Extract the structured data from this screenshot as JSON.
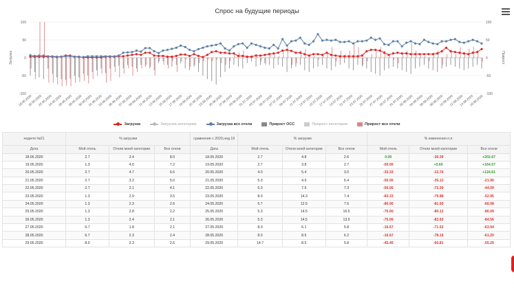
{
  "chart": {
    "title": "Спрос на будущие периоды",
    "menu_icon": "hamburger-menu-icon",
    "y_left_label": "Загрузка",
    "y_right_label": "Прирост",
    "y_ticks": [
      "100",
      "50",
      "0",
      "-50",
      "-100"
    ],
    "legend": [
      {
        "label": "Загрузка",
        "kind": "line",
        "color": "#d62728",
        "muted": false
      },
      {
        "label": "Загрузка категории",
        "kind": "line",
        "color": "#bbbbbb",
        "muted": true
      },
      {
        "label": "Загрузка все отели",
        "kind": "line",
        "color": "#5b7fa6",
        "muted": false
      },
      {
        "label": "Прирост ОСС",
        "kind": "box",
        "color": "#888888",
        "muted": false
      },
      {
        "label": "Прирост категории",
        "kind": "box",
        "color": "#cccccc",
        "muted": true
      },
      {
        "label": "Прирост все отели",
        "kind": "box",
        "color": "#d98888",
        "muted": false
      }
    ]
  },
  "chart_data": {
    "type": "line",
    "x_labels": [
      "18.05.2020",
      "20.05.2020",
      "22.05.2020",
      "24.05.2020",
      "26.05.2020",
      "28.05.2020",
      "30.05.2020",
      "01.06.2020",
      "03.06.2020",
      "05.06.2020",
      "07.06.2020",
      "09.06.2020",
      "11.06.2020",
      "13.06.2020",
      "15.06.2020",
      "17.06.2020",
      "19.06.2020",
      "21.06.2020",
      "23.06.2020",
      "25.06.2020",
      "27.06.2020",
      "29.06.2020",
      "01.07.2020",
      "03.07.2020",
      "05.07.2020",
      "07.07.2020",
      "09.07.2020",
      "11.07.2020",
      "13.07.2020",
      "15.07.2020",
      "17.07.2020",
      "19.07.2020",
      "21.07.2020",
      "23.07.2020",
      "25.07.2020",
      "27.07.2020",
      "29.07.2020",
      "31.07.2020",
      "02.08.2020",
      "04.08.2020",
      "06.08.2020",
      "08.08.2020",
      "10.08.2020",
      "12.08.2020",
      "14.08.2020",
      "16.08.2020"
    ],
    "ylim": [
      -100,
      100
    ],
    "series": [
      {
        "name": "Загрузка",
        "color": "#d62728",
        "values": [
          3,
          3,
          3,
          3,
          3,
          3,
          2,
          3,
          6,
          6,
          3,
          3,
          1,
          1,
          1,
          1,
          1,
          3,
          3,
          3,
          4,
          4,
          6,
          8,
          10,
          8,
          14,
          14,
          6,
          5,
          5,
          3,
          3,
          5,
          9,
          9,
          5,
          10,
          5,
          2,
          8,
          16,
          18,
          14,
          14,
          12,
          12,
          5,
          5,
          3,
          3,
          6,
          6,
          8,
          10,
          12,
          14,
          20,
          22,
          19,
          14,
          14,
          10,
          6,
          10,
          10,
          8,
          14,
          8,
          6,
          4,
          4,
          4,
          4,
          4,
          6,
          18,
          22,
          22,
          20,
          14,
          8,
          12,
          14,
          12,
          12,
          10,
          10,
          10,
          10,
          10,
          10,
          12,
          18,
          28,
          18,
          16,
          14,
          12,
          10,
          14,
          16,
          24
        ]
      },
      {
        "name": "Загрузка все отели",
        "color": "#5b7fa6",
        "values": [
          7,
          5,
          6,
          6,
          4,
          4,
          3,
          3,
          4,
          4,
          3,
          2,
          2,
          4,
          4,
          4,
          4,
          4,
          4,
          4,
          6,
          14,
          15,
          16,
          20,
          17,
          27,
          27,
          18,
          13,
          20,
          22,
          25,
          28,
          34,
          30,
          22,
          18,
          24,
          28,
          32,
          34,
          36,
          40,
          26,
          20,
          32,
          38,
          40,
          28,
          40,
          36,
          32,
          28,
          26,
          36,
          26,
          52,
          34,
          46,
          48,
          56,
          40,
          36,
          46,
          66,
          48,
          50,
          48,
          50,
          44,
          44,
          46,
          40,
          46,
          46,
          48,
          56,
          50,
          54,
          38,
          36,
          46,
          46,
          32,
          42,
          46,
          40,
          38,
          50,
          44,
          40,
          38,
          46,
          46,
          50,
          52,
          44,
          42,
          46,
          50,
          46,
          40
        ]
      }
    ]
  },
  "table": {
    "header1": {
      "week": "неделя №21",
      "load_left": "% загрузки",
      "comparison": "сравнение с 2020,нед.19",
      "load_right": "% загрузки",
      "change": "% изменения п.п."
    },
    "header2": [
      "Дата",
      "Мой отель",
      "Отели моей категории",
      "Все отели",
      "Дата",
      "Мой отель",
      "Отели моей категории",
      "Все отели",
      "Мой отель",
      "Отели моей категории",
      "Все отели"
    ],
    "rows": [
      [
        "18.05.2020",
        "2.7",
        "3.4",
        "8.0",
        "18.05.2020",
        "2.7",
        "4.8",
        "2.6",
        "0.00",
        "-30.39",
        "+202.67"
      ],
      [
        "19.05.2020",
        "1.3",
        "4.0",
        "7.2",
        "19.05.2020",
        "2.7",
        "3.8",
        "2.7",
        "-50.00",
        "+5.60",
        "+164.07"
      ],
      [
        "20.05.2020",
        "2.7",
        "4.7",
        "6.6",
        "20.05.2020",
        "4.0",
        "5.4",
        "3.0",
        "-33.33",
        "-12.74",
        "+124.61"
      ],
      [
        "21.05.2020",
        "2.7",
        "3.2",
        "5.0",
        "21.05.2020",
        "5.3",
        "4.9",
        "6.4",
        "-50.00",
        "-35.13",
        "-21.90"
      ],
      [
        "22.05.2020",
        "2.7",
        "2.1",
        "4.1",
        "22.05.2020",
        "5.3",
        "7.5",
        "7.3",
        "-50.00",
        "-72.39",
        "-44.09"
      ],
      [
        "23.05.2020",
        "1.3",
        "2.9",
        "3.5",
        "23.05.2020",
        "8.0",
        "14.3",
        "7.4",
        "-83.33",
        "-79.88",
        "-52.95"
      ],
      [
        "24.05.2020",
        "1.3",
        "2.3",
        "2.6",
        "24.05.2020",
        "6.7",
        "12.5",
        "7.6",
        "-80.00",
        "-81.93",
        "-66.08"
      ],
      [
        "25.05.2020",
        "1.3",
        "2.8",
        "2.2",
        "25.05.2020",
        "5.3",
        "14.5",
        "16.5",
        "-75.00",
        "-80.12",
        "-86.09"
      ],
      [
        "26.05.2020",
        "1.3",
        "2.4",
        "2.1",
        "26.05.2020",
        "5.3",
        "14.5",
        "13.5",
        "-75.00",
        "-83.60",
        "-84.56"
      ],
      [
        "27.05.2020",
        "6.7",
        "1.8",
        "2.1",
        "27.05.2020",
        "8.0",
        "6.1",
        "5.8",
        "-16.67",
        "-71.52",
        "-63.94"
      ],
      [
        "28.05.2020",
        "6.7",
        "2.3",
        "2.4",
        "28.05.2020",
        "8.0",
        "8.5",
        "6.2",
        "-16.67",
        "-78.19",
        "-61.20"
      ],
      [
        "29.05.2020",
        "8.0",
        "3.3",
        "2.6",
        "29.05.2020",
        "14.7",
        "8.5",
        "5.8",
        "-45.45",
        "-60.81",
        "-55.29"
      ]
    ]
  },
  "export_icon": "excel-export-icon"
}
